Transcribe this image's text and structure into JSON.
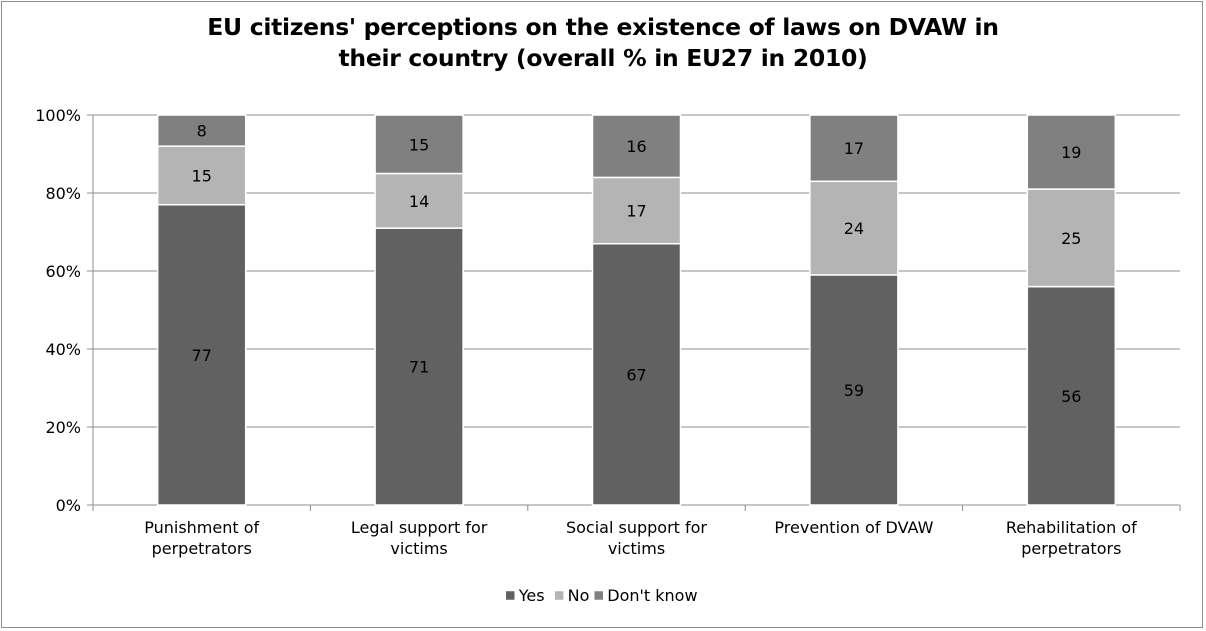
{
  "chart_data": {
    "type": "bar",
    "stacked": true,
    "title_lines": [
      "EU citizens' perceptions on the existence of laws on DVAW in",
      "their country (overall % in EU27 in 2010)"
    ],
    "categories": [
      [
        "Punishment of",
        "perpetrators"
      ],
      [
        "Legal support for",
        "victims"
      ],
      [
        "Social support for",
        "victims"
      ],
      [
        "Prevention of DVAW"
      ],
      [
        "Rehabilitation of",
        "perpetrators"
      ]
    ],
    "series": [
      {
        "name": "Yes",
        "values": [
          77,
          71,
          67,
          59,
          56
        ],
        "color": "#616161"
      },
      {
        "name": "No",
        "values": [
          15,
          14,
          17,
          24,
          25
        ],
        "color": "#b4b4b4"
      },
      {
        "name": "Don't know",
        "values": [
          8,
          15,
          16,
          17,
          19
        ],
        "color": "#808080"
      }
    ],
    "y_ticks": [
      "0%",
      "20%",
      "40%",
      "60%",
      "80%",
      "100%"
    ],
    "ylim": [
      0,
      100
    ],
    "grid": true,
    "legend_position": "bottom"
  }
}
